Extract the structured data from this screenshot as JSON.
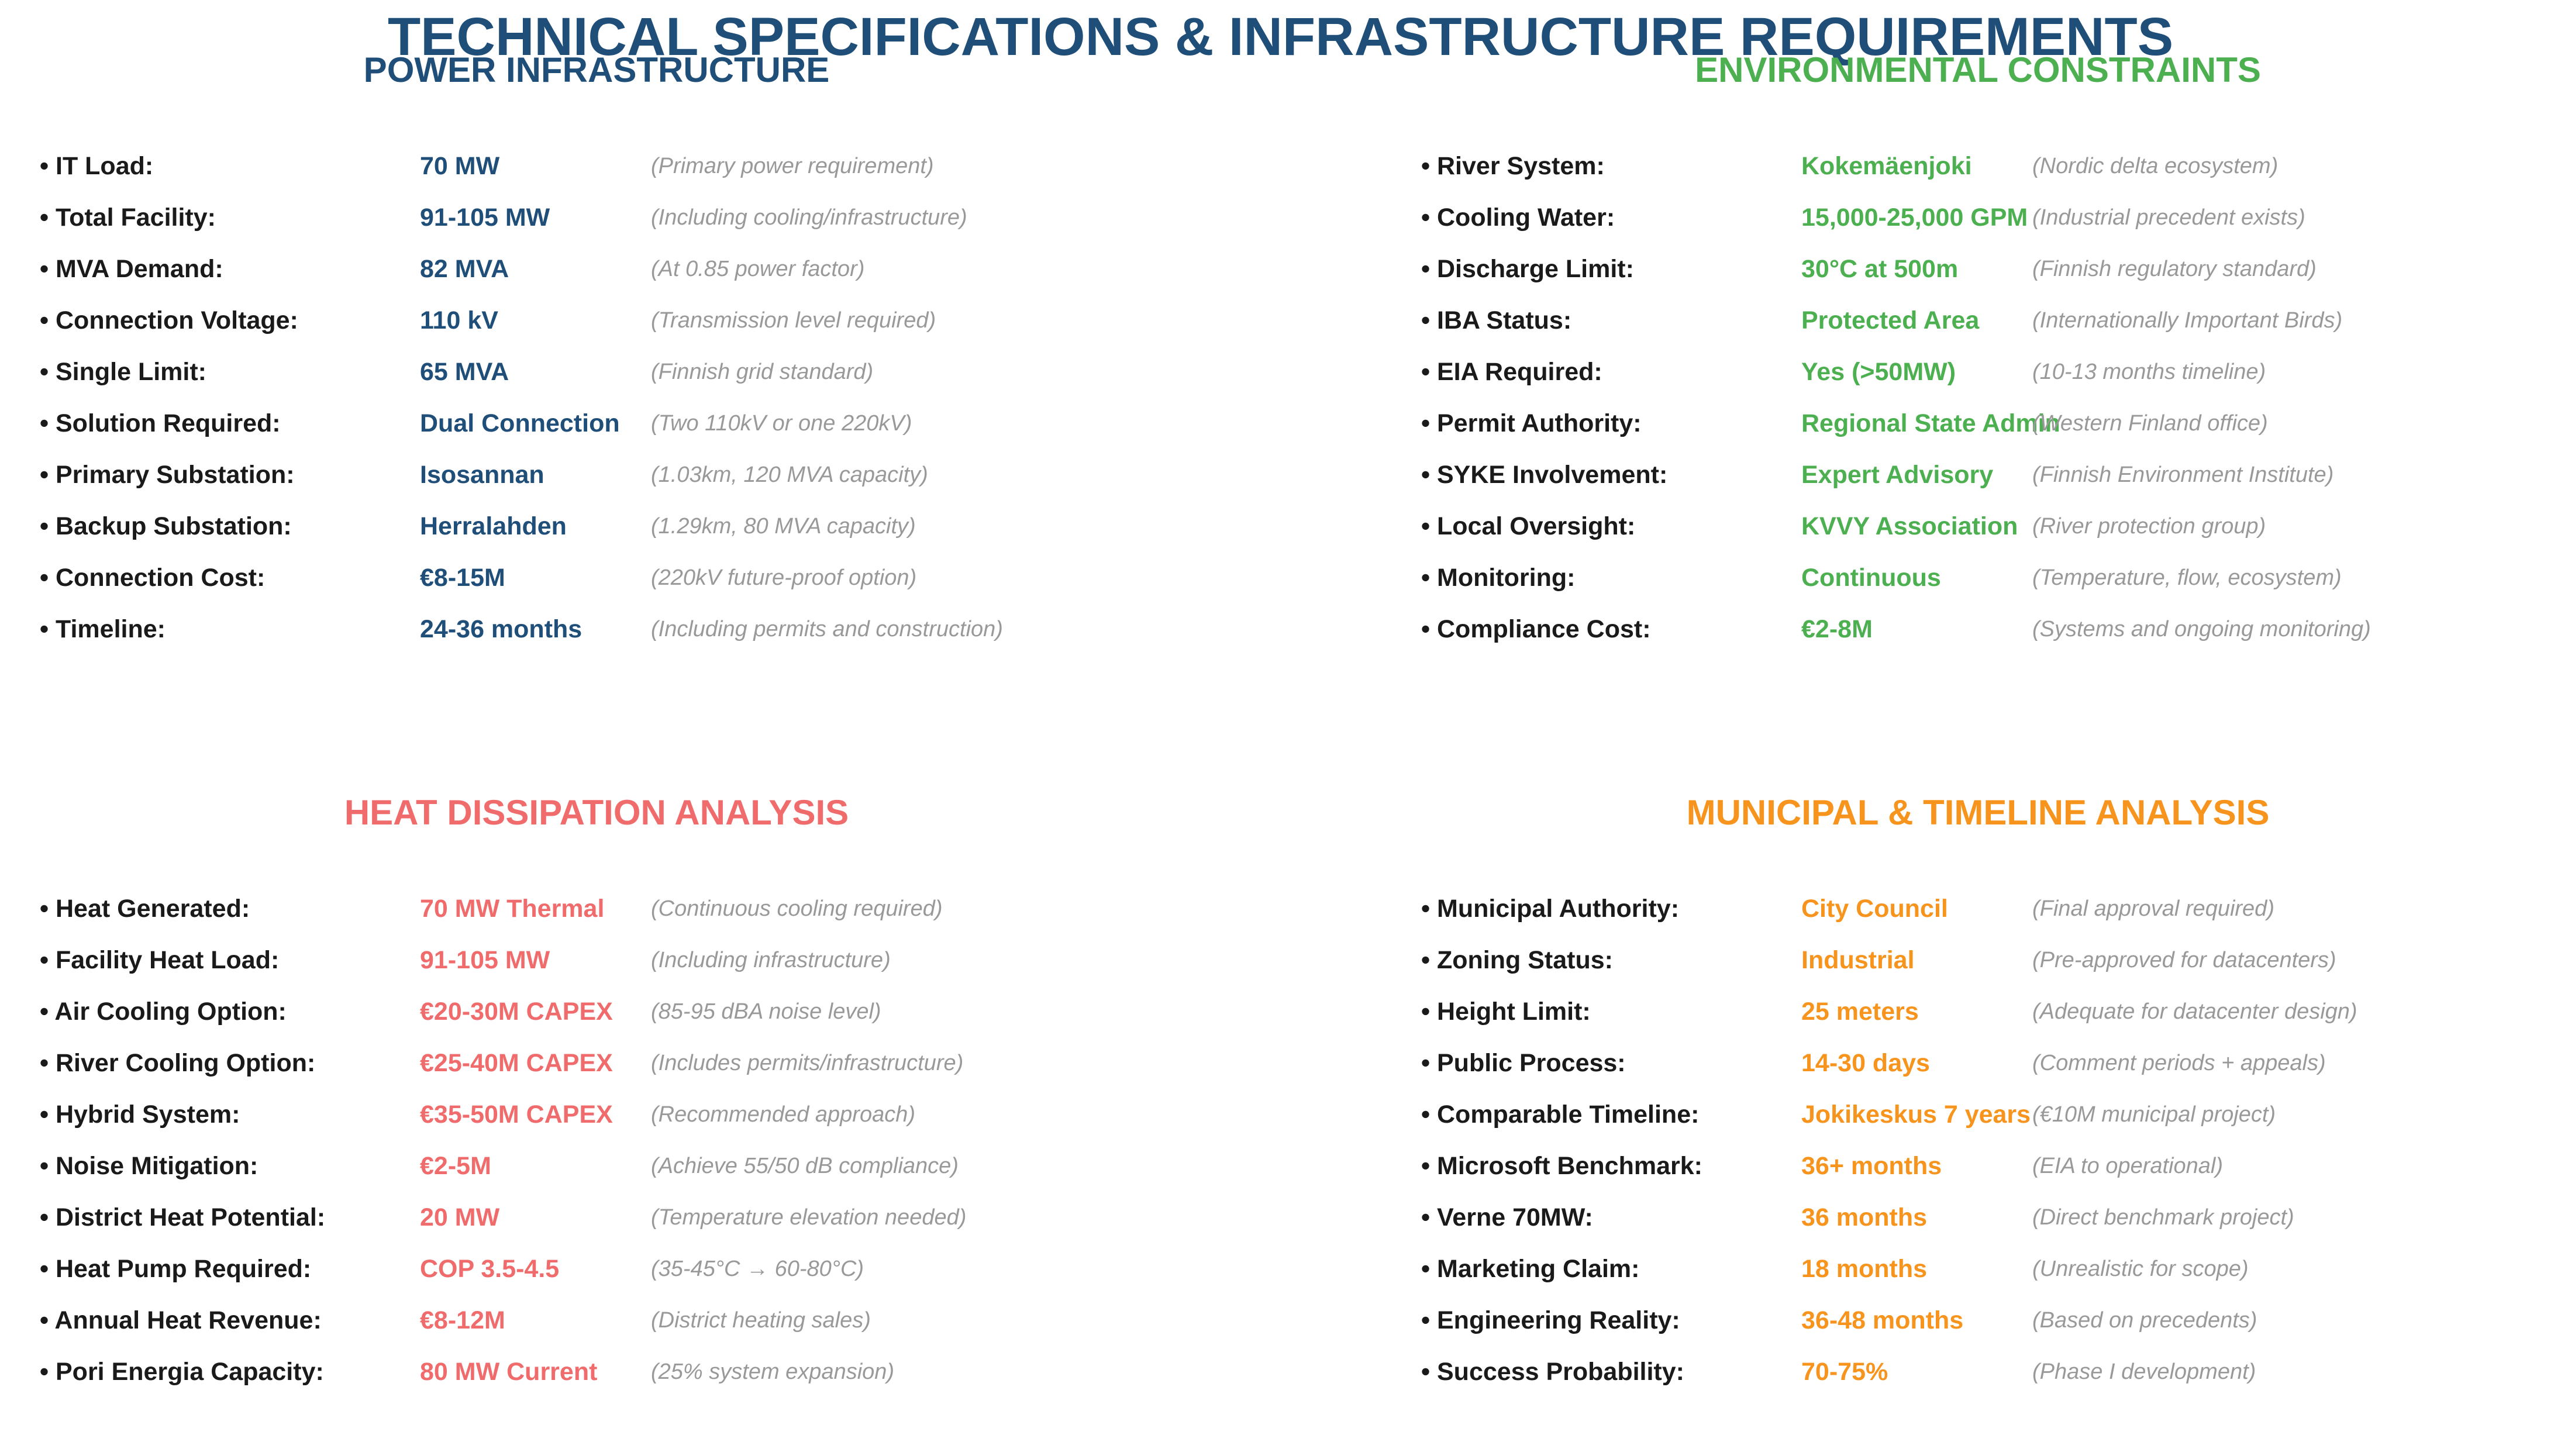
{
  "page": {
    "title": "TECHNICAL SPECIFICATIONS & INFRASTRUCTURE REQUIREMENTS",
    "title_color": "#1f4e79"
  },
  "sections": [
    {
      "title": "POWER INFRASTRUCTURE",
      "color": "#1f4e79",
      "rows": [
        {
          "label": "• IT Load:",
          "value": "70 MW",
          "note": "(Primary power requirement)"
        },
        {
          "label": "• Total Facility:",
          "value": "91-105 MW",
          "note": "(Including cooling/infrastructure)"
        },
        {
          "label": "• MVA Demand:",
          "value": "82 MVA",
          "note": "(At 0.85 power factor)"
        },
        {
          "label": "• Connection Voltage:",
          "value": "110 kV",
          "note": "(Transmission level required)"
        },
        {
          "label": "• Single Limit:",
          "value": "65 MVA",
          "note": "(Finnish grid standard)"
        },
        {
          "label": "• Solution Required:",
          "value": "Dual Connection",
          "note": "(Two 110kV or one 220kV)"
        },
        {
          "label": "• Primary Substation:",
          "value": "Isosannan",
          "note": "(1.03km, 120 MVA capacity)"
        },
        {
          "label": "• Backup Substation:",
          "value": "Herralahden",
          "note": "(1.29km, 80 MVA capacity)"
        },
        {
          "label": "• Connection Cost:",
          "value": "€8-15M",
          "note": "(220kV future-proof option)"
        },
        {
          "label": "• Timeline:",
          "value": "24-36 months",
          "note": "(Including permits and construction)"
        }
      ]
    },
    {
      "title": "ENVIRONMENTAL CONSTRAINTS",
      "color": "#4caf50",
      "rows": [
        {
          "label": "• River System:",
          "value": "Kokemäenjoki",
          "note": "(Nordic delta ecosystem)"
        },
        {
          "label": "• Cooling Water:",
          "value": "15,000-25,000 GPM",
          "note": "(Industrial precedent exists)"
        },
        {
          "label": "• Discharge Limit:",
          "value": "30°C at 500m",
          "note": "(Finnish regulatory standard)"
        },
        {
          "label": "• IBA Status:",
          "value": "Protected Area",
          "note": "(Internationally Important Birds)"
        },
        {
          "label": "• EIA Required:",
          "value": "Yes (>50MW)",
          "note": "(10-13 months timeline)"
        },
        {
          "label": "• Permit Authority:",
          "value": "Regional State Admin",
          "note": "(Western Finland office)"
        },
        {
          "label": "• SYKE Involvement:",
          "value": "Expert Advisory",
          "note": "(Finnish Environment Institute)"
        },
        {
          "label": "• Local Oversight:",
          "value": "KVVY Association",
          "note": "(River protection group)"
        },
        {
          "label": "• Monitoring:",
          "value": "Continuous",
          "note": "(Temperature, flow, ecosystem)"
        },
        {
          "label": "• Compliance Cost:",
          "value": "€2-8M",
          "note": "(Systems and ongoing monitoring)"
        }
      ]
    },
    {
      "title": "HEAT DISSIPATION ANALYSIS",
      "color": "#f06b6b",
      "rows": [
        {
          "label": "• Heat Generated:",
          "value": "70 MW Thermal",
          "note": "(Continuous cooling required)"
        },
        {
          "label": "• Facility Heat Load:",
          "value": "91-105 MW",
          "note": "(Including infrastructure)"
        },
        {
          "label": "• Air Cooling Option:",
          "value": "€20-30M CAPEX",
          "note": "(85-95 dBA noise level)"
        },
        {
          "label": "• River Cooling Option:",
          "value": "€25-40M CAPEX",
          "note": "(Includes permits/infrastructure)"
        },
        {
          "label": "• Hybrid System:",
          "value": "€35-50M CAPEX",
          "note": "(Recommended approach)"
        },
        {
          "label": "• Noise Mitigation:",
          "value": "€2-5M",
          "note": "(Achieve 55/50 dB compliance)"
        },
        {
          "label": "• District Heat Potential:",
          "value": "20 MW",
          "note": "(Temperature elevation needed)"
        },
        {
          "label": "• Heat Pump Required:",
          "value": "COP 3.5-4.5",
          "note": "(35-45°C → 60-80°C)"
        },
        {
          "label": "• Annual Heat Revenue:",
          "value": "€8-12M",
          "note": "(District heating sales)"
        },
        {
          "label": "• Pori Energia Capacity:",
          "value": "80 MW Current",
          "note": "(25% system expansion)"
        }
      ]
    },
    {
      "title": "MUNICIPAL & TIMELINE ANALYSIS",
      "color": "#f7941d",
      "rows": [
        {
          "label": "• Municipal Authority:",
          "value": "City Council",
          "note": "(Final approval required)"
        },
        {
          "label": "• Zoning Status:",
          "value": "Industrial",
          "note": "(Pre-approved for datacenters)"
        },
        {
          "label": "• Height Limit:",
          "value": "25 meters",
          "note": "(Adequate for datacenter design)"
        },
        {
          "label": "• Public Process:",
          "value": "14-30 days",
          "note": "(Comment periods + appeals)"
        },
        {
          "label": "• Comparable Timeline:",
          "value": "Jokikeskus 7 years",
          "note": "(€10M municipal project)"
        },
        {
          "label": "• Microsoft Benchmark:",
          "value": "36+ months",
          "note": "(EIA to operational)"
        },
        {
          "label": "• Verne 70MW:",
          "value": "36 months",
          "note": "(Direct benchmark project)"
        },
        {
          "label": "• Marketing Claim:",
          "value": "18 months",
          "note": "(Unrealistic for scope)"
        },
        {
          "label": "• Engineering Reality:",
          "value": "36-48 months",
          "note": "(Based on precedents)"
        },
        {
          "label": "• Success Probability:",
          "value": "70-75%",
          "note": "(Phase I development)"
        }
      ]
    }
  ]
}
